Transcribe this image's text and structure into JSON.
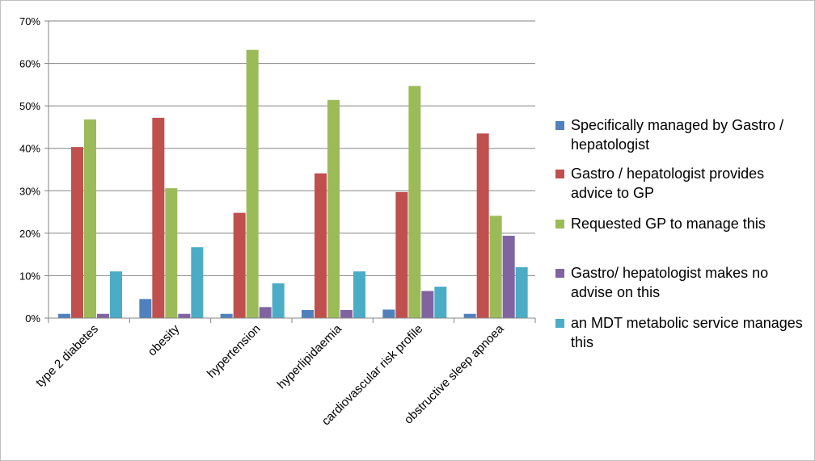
{
  "chart_data": {
    "type": "bar",
    "title": "",
    "xlabel": "",
    "ylabel": "",
    "ylim": [
      0,
      70
    ],
    "y_ticks": [
      "0%",
      "10%",
      "20%",
      "30%",
      "40%",
      "50%",
      "60%",
      "70%"
    ],
    "y_tick_values": [
      0,
      10,
      20,
      30,
      40,
      50,
      60,
      70
    ],
    "grid": true,
    "legend_position": "right",
    "categories": [
      "type 2 diabetes",
      "obesity",
      "hypertension",
      "hyperlipidaemia",
      "cardiovascular risk profile",
      "obstructive sleep apnoea"
    ],
    "series": [
      {
        "name": "Specifically managed by Gastro / hepatologist",
        "color": "#4f81bd",
        "values": [
          1.0,
          4.5,
          1.0,
          1.9,
          2.0,
          1.0
        ]
      },
      {
        "name": "Gastro / hepatologist provides advice to GP",
        "color": "#c0504d",
        "values": [
          40.3,
          47.2,
          24.8,
          34.1,
          29.7,
          43.5
        ]
      },
      {
        "name": "Requested GP to manage this",
        "color": "#9bbb59",
        "values": [
          46.8,
          30.6,
          63.2,
          51.4,
          54.7,
          24.1
        ]
      },
      {
        "name": "Gastro/ hepatologist makes no advise on this",
        "color": "#8064a2",
        "values": [
          1.0,
          1.0,
          2.6,
          1.9,
          6.4,
          19.4
        ]
      },
      {
        "name": "an MDT metabolic service manages this",
        "color": "#4bacc6",
        "values": [
          11.0,
          16.7,
          8.2,
          11.0,
          7.4,
          12.0
        ]
      }
    ]
  }
}
